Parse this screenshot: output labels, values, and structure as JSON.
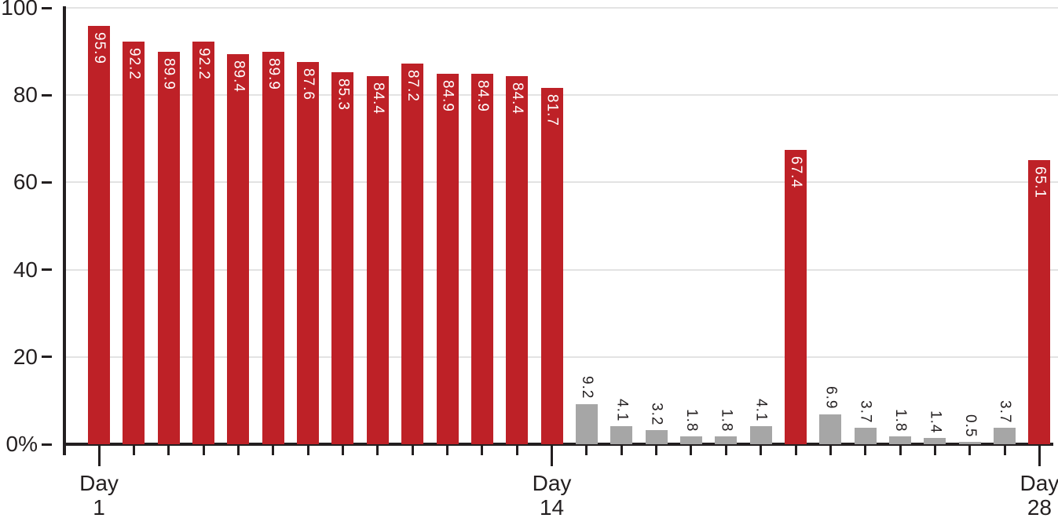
{
  "chart_data": {
    "type": "bar",
    "title": "",
    "xlabel": "",
    "ylabel": "",
    "ylim": [
      0,
      100
    ],
    "grid": true,
    "legend": "none",
    "y_ticks": [
      {
        "value": 0,
        "label": "0%"
      },
      {
        "value": 20,
        "label": "20"
      },
      {
        "value": 40,
        "label": "40"
      },
      {
        "value": 60,
        "label": "60"
      },
      {
        "value": 80,
        "label": "80"
      },
      {
        "value": 100,
        "label": "100"
      }
    ],
    "x_tick_labels": [
      {
        "day": 1,
        "line1": "Day",
        "line2": "1"
      },
      {
        "day": 14,
        "line1": "Day",
        "line2": "14"
      },
      {
        "day": 28,
        "line1": "Day",
        "line2": "28"
      }
    ],
    "bars": [
      {
        "day": 1,
        "value": 95.9,
        "color": "red"
      },
      {
        "day": 2,
        "value": 92.2,
        "color": "red"
      },
      {
        "day": 3,
        "value": 89.9,
        "color": "red"
      },
      {
        "day": 4,
        "value": 92.2,
        "color": "red"
      },
      {
        "day": 5,
        "value": 89.4,
        "color": "red"
      },
      {
        "day": 6,
        "value": 89.9,
        "color": "red"
      },
      {
        "day": 7,
        "value": 87.6,
        "color": "red"
      },
      {
        "day": 8,
        "value": 85.3,
        "color": "red"
      },
      {
        "day": 9,
        "value": 84.4,
        "color": "red"
      },
      {
        "day": 10,
        "value": 87.2,
        "color": "red"
      },
      {
        "day": 11,
        "value": 84.9,
        "color": "red"
      },
      {
        "day": 12,
        "value": 84.9,
        "color": "red"
      },
      {
        "day": 13,
        "value": 84.4,
        "color": "red"
      },
      {
        "day": 14,
        "value": 81.7,
        "color": "red"
      },
      {
        "day": 15,
        "value": 9.2,
        "color": "gray"
      },
      {
        "day": 16,
        "value": 4.1,
        "color": "gray"
      },
      {
        "day": 17,
        "value": 3.2,
        "color": "gray"
      },
      {
        "day": 18,
        "value": 1.8,
        "color": "gray"
      },
      {
        "day": 19,
        "value": 1.8,
        "color": "gray"
      },
      {
        "day": 20,
        "value": 4.1,
        "color": "gray"
      },
      {
        "day": 21,
        "value": 67.4,
        "color": "red"
      },
      {
        "day": 22,
        "value": 6.9,
        "color": "gray"
      },
      {
        "day": 23,
        "value": 3.7,
        "color": "gray"
      },
      {
        "day": 24,
        "value": 1.8,
        "color": "gray"
      },
      {
        "day": 25,
        "value": 1.4,
        "color": "gray"
      },
      {
        "day": 26,
        "value": 0.5,
        "color": "gray"
      },
      {
        "day": 27,
        "value": 3.7,
        "color": "gray"
      },
      {
        "day": 28,
        "value": 65.1,
        "color": "red"
      }
    ],
    "colors": {
      "red": "#be2127",
      "gray": "#a6a6a6",
      "axis": "#231f20",
      "grid": "#e3e3e3",
      "value_label_on_red": "#ffffff",
      "value_label_on_gray": "#231f20"
    }
  }
}
